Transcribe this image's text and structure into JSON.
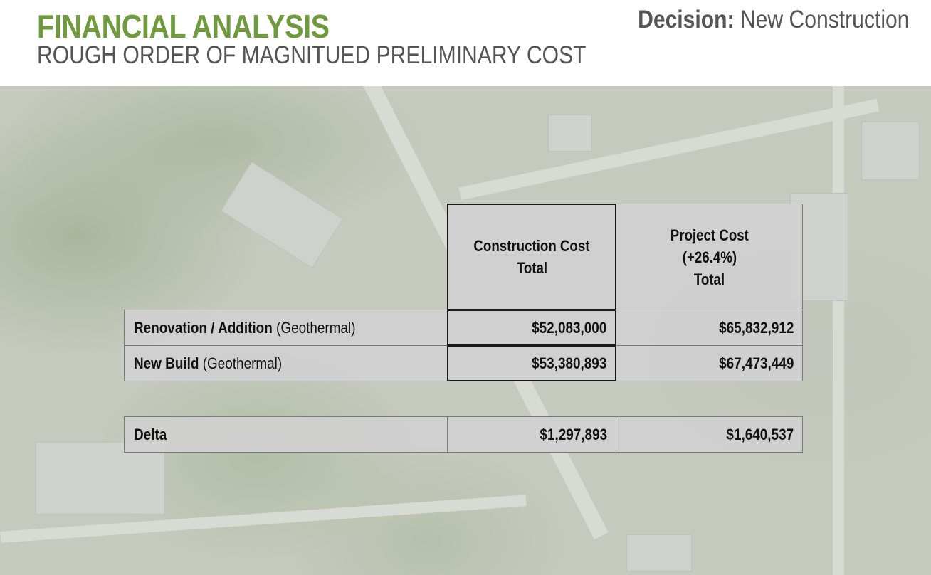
{
  "colors": {
    "title_green": "#6f9a3d",
    "text_gray": "#555555"
  },
  "header": {
    "title": "FINANCIAL ANALYSIS",
    "subtitle": "ROUGH ORDER OF MAGNITUED PRELIMINARY COST",
    "decision_label": "Decision:",
    "decision_value": "New Construction"
  },
  "table": {
    "col1_header": [
      "Construction Cost",
      "Total"
    ],
    "col2_header": [
      "Project Cost",
      "(+26.4%)",
      "Total"
    ],
    "rows": [
      {
        "label": "Renovation / Addition",
        "note": "(Geothermal)",
        "construction": "$52,083,000",
        "project": "$65,832,912"
      },
      {
        "label": "New Build",
        "note": "(Geothermal)",
        "construction": "$53,380,893",
        "project": "$67,473,449"
      }
    ],
    "delta": {
      "label": "Delta",
      "construction": "$1,297,893",
      "project": "$1,640,537"
    }
  }
}
